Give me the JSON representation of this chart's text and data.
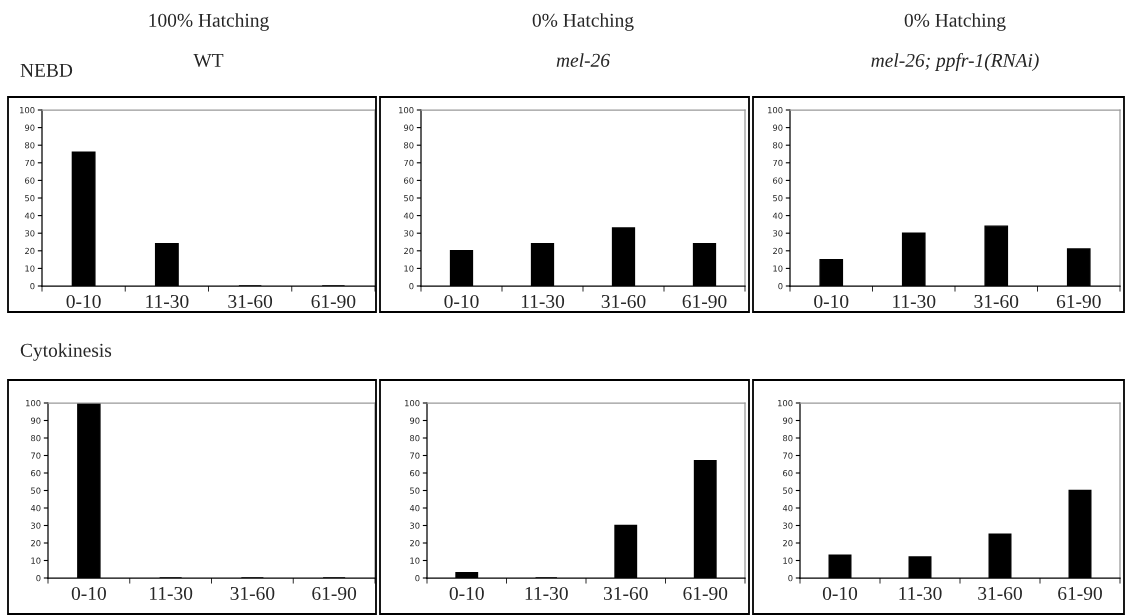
{
  "chart_data": [
    {
      "type": "bar",
      "title": "100% Hatching",
      "subtitle": "WT",
      "annotations": [
        "NEBD"
      ],
      "categories": [
        "0-10",
        "11-30",
        "31-60",
        "61-90"
      ],
      "values": [
        76,
        24,
        0,
        0
      ],
      "color": "#000000",
      "ylim": [
        0,
        100
      ],
      "yticks": [
        0,
        10,
        20,
        30,
        40,
        50,
        60,
        70,
        80,
        90,
        100
      ],
      "grid": false
    },
    {
      "type": "bar",
      "title": "0% Hatching",
      "subtitle": "mel-26",
      "categories": [
        "0-10",
        "11-30",
        "31-60",
        "61-90"
      ],
      "values": [
        20,
        24,
        33,
        24
      ],
      "color": "#000000",
      "ylim": [
        0,
        100
      ],
      "yticks": [
        0,
        10,
        20,
        30,
        40,
        50,
        60,
        70,
        80,
        90,
        100
      ],
      "grid": false
    },
    {
      "type": "bar",
      "title": "0% Hatching",
      "subtitle": "mel-26; ppfr-1(RNAi)",
      "categories": [
        "0-10",
        "11-30",
        "31-60",
        "61-90"
      ],
      "values": [
        15,
        30,
        34,
        21
      ],
      "color": "#000000",
      "ylim": [
        0,
        100
      ],
      "yticks": [
        0,
        10,
        20,
        30,
        40,
        50,
        60,
        70,
        80,
        90,
        100
      ],
      "grid": false
    },
    {
      "type": "bar",
      "annotations": [
        "Cytokinesis"
      ],
      "categories": [
        "0-10",
        "11-30",
        "31-60",
        "61-90"
      ],
      "values": [
        100,
        0,
        0,
        0
      ],
      "color": "#000000",
      "ylim": [
        0,
        100
      ],
      "yticks": [
        0,
        10,
        20,
        30,
        40,
        50,
        60,
        70,
        80,
        90,
        100
      ],
      "grid": false
    },
    {
      "type": "bar",
      "categories": [
        "0-10",
        "11-30",
        "31-60",
        "61-90"
      ],
      "values": [
        3,
        0,
        30,
        67
      ],
      "color": "#000000",
      "ylim": [
        0,
        100
      ],
      "yticks": [
        0,
        10,
        20,
        30,
        40,
        50,
        60,
        70,
        80,
        90,
        100
      ],
      "grid": false
    },
    {
      "type": "bar",
      "categories": [
        "0-10",
        "11-30",
        "31-60",
        "61-90"
      ],
      "values": [
        13,
        12,
        25,
        50
      ],
      "color": "#000000",
      "ylim": [
        0,
        100
      ],
      "yticks": [
        0,
        10,
        20,
        30,
        40,
        50,
        60,
        70,
        80,
        90,
        100
      ],
      "grid": false
    }
  ]
}
